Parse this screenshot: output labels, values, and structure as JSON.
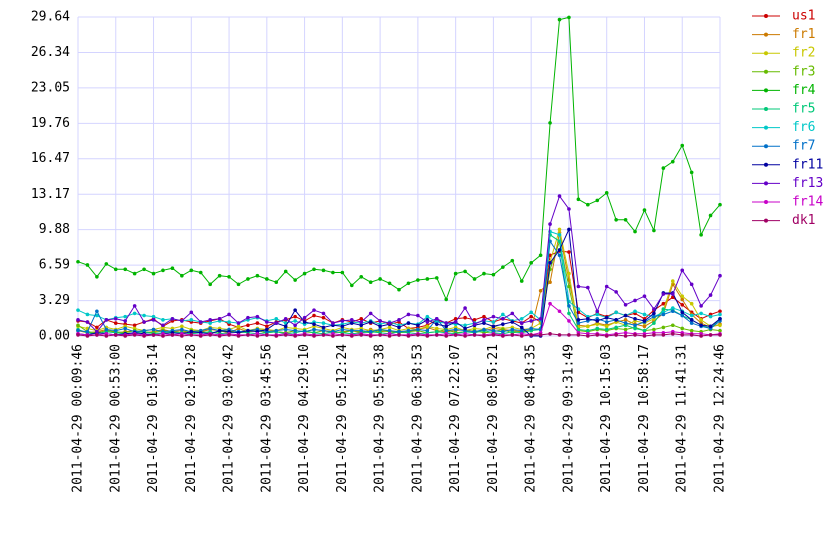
{
  "chart_data": {
    "type": "line",
    "categories": [
      "2011-04-29 00:09:46",
      null,
      null,
      null,
      "2011-04-29 00:53:00",
      null,
      null,
      null,
      "2011-04-29 01:36:14",
      null,
      null,
      null,
      "2011-04-29 02:19:28",
      null,
      null,
      null,
      "2011-04-29 03:02:42",
      null,
      null,
      null,
      "2011-04-29 03:45:56",
      null,
      null,
      null,
      "2011-04-29 04:29:10",
      null,
      null,
      null,
      "2011-04-29 05:12:24",
      null,
      null,
      null,
      "2011-04-29 05:55:38",
      null,
      null,
      null,
      "2011-04-29 06:38:53",
      null,
      null,
      null,
      "2011-04-29 07:22:07",
      null,
      null,
      null,
      "2011-04-29 08:05:21",
      null,
      null,
      null,
      "2011-04-29 08:48:35",
      null,
      null,
      null,
      "2011-04-29 09:31:49",
      null,
      null,
      null,
      "2011-04-29 10:15:03",
      null,
      null,
      null,
      "2011-04-29 10:58:17",
      null,
      null,
      null,
      "2011-04-29 11:41:31",
      null,
      null,
      null,
      "2011-04-29 12:24:46"
    ],
    "ylim": [
      0,
      29.64
    ],
    "yticks": [
      {
        "value": 0,
        "label": "0.00"
      },
      {
        "value": 3.29,
        "label": "3.29"
      },
      {
        "value": 6.59,
        "label": "6.59"
      },
      {
        "value": 9.88,
        "label": "9.88"
      },
      {
        "value": 13.17,
        "label": "13.17"
      },
      {
        "value": 16.47,
        "label": "16.47"
      },
      {
        "value": 19.76,
        "label": "19.76"
      },
      {
        "value": 23.05,
        "label": "23.05"
      },
      {
        "value": 26.34,
        "label": "26.34"
      },
      {
        "value": 29.64,
        "label": "29.64"
      }
    ],
    "grid": true,
    "legend": "right",
    "series": [
      {
        "name": "us1",
        "color": "#cc0000",
        "values": [
          1.4,
          1.3,
          0.8,
          1.5,
          1.2,
          1.1,
          1.0,
          1.3,
          1.6,
          0.9,
          1.4,
          1.5,
          1.3,
          1.2,
          1.4,
          1.6,
          1.1,
          0.8,
          1.0,
          1.2,
          0.9,
          1.3,
          1.5,
          1.8,
          1.4,
          1.9,
          1.7,
          1.2,
          1.5,
          1.3,
          1.6,
          1.2,
          1.4,
          1.1,
          1.3,
          0.7,
          0.8,
          1.0,
          1.5,
          1.2,
          1.6,
          1.7,
          1.5,
          1.8,
          1.3,
          1.6,
          1.4,
          1.2,
          1.8,
          1.3,
          7.5,
          7.9,
          7.8,
          2.2,
          1.7,
          2.1,
          1.8,
          2.2,
          1.9,
          2.1,
          1.6,
          2.4,
          3.0,
          3.6,
          2.9,
          2.2,
          1.6,
          2.0,
          2.3
        ]
      },
      {
        "name": "fr1",
        "color": "#cc7a00",
        "values": [
          0.5,
          0.3,
          0.4,
          0.6,
          0.3,
          0.4,
          0.5,
          0.3,
          0.4,
          0.6,
          0.4,
          0.5,
          0.3,
          0.4,
          0.6,
          0.5,
          0.3,
          0.7,
          0.4,
          0.5,
          0.6,
          0.4,
          0.3,
          0.5,
          0.4,
          0.6,
          0.5,
          0.3,
          0.4,
          0.5,
          0.3,
          0.6,
          0.4,
          0.5,
          0.3,
          0.4,
          0.6,
          0.8,
          0.5,
          0.4,
          0.5,
          0.6,
          0.4,
          0.5,
          0.7,
          0.6,
          0.5,
          0.4,
          0.6,
          4.2,
          5.0,
          9.6,
          5.2,
          1.0,
          0.9,
          1.2,
          1.0,
          1.3,
          1.5,
          1.1,
          0.9,
          1.4,
          2.1,
          4.8,
          3.4,
          2.0,
          1.2,
          0.8,
          1.1
        ]
      },
      {
        "name": "fr2",
        "color": "#c8c800",
        "values": [
          0.9,
          0.7,
          0.5,
          0.8,
          0.6,
          0.9,
          0.7,
          0.5,
          0.6,
          0.8,
          0.7,
          0.9,
          0.6,
          0.5,
          0.8,
          0.7,
          0.6,
          0.9,
          0.5,
          0.7,
          0.6,
          0.5,
          0.8,
          0.7,
          0.6,
          0.9,
          0.7,
          0.5,
          0.8,
          0.6,
          0.7,
          0.5,
          0.6,
          0.8,
          0.5,
          0.7,
          0.6,
          0.9,
          0.7,
          0.6,
          0.8,
          0.5,
          0.7,
          0.6,
          0.9,
          0.7,
          0.8,
          0.6,
          0.7,
          1.2,
          6.9,
          9.9,
          5.8,
          0.8,
          0.9,
          1.1,
          0.9,
          1.3,
          1.0,
          1.4,
          1.2,
          1.6,
          2.4,
          5.1,
          3.7,
          3.0,
          1.5,
          0.9,
          1.0
        ]
      },
      {
        "name": "fr3",
        "color": "#66bb00",
        "values": [
          1.0,
          0.4,
          0.3,
          0.5,
          0.4,
          0.3,
          0.5,
          0.4,
          0.3,
          0.5,
          0.4,
          0.3,
          0.5,
          0.4,
          0.3,
          0.4,
          0.5,
          0.3,
          0.4,
          0.5,
          0.3,
          0.4,
          0.3,
          0.5,
          0.4,
          0.3,
          0.5,
          0.4,
          0.3,
          0.5,
          0.4,
          0.3,
          0.5,
          0.4,
          0.3,
          0.4,
          0.5,
          0.3,
          0.4,
          0.6,
          0.3,
          0.4,
          0.5,
          0.3,
          0.4,
          0.6,
          0.3,
          0.4,
          0.5,
          0.7,
          6.2,
          8.8,
          4.6,
          0.5,
          0.4,
          0.6,
          0.5,
          0.7,
          0.6,
          0.8,
          0.5,
          0.6,
          0.8,
          1.0,
          0.7,
          0.5,
          0.4,
          0.6,
          0.5
        ]
      },
      {
        "name": "fr4",
        "color": "#00b400",
        "values": [
          6.9,
          6.6,
          5.5,
          6.7,
          6.2,
          6.2,
          5.8,
          6.2,
          5.8,
          6.1,
          6.3,
          5.6,
          6.1,
          5.9,
          4.8,
          5.6,
          5.5,
          4.8,
          5.3,
          5.6,
          5.3,
          5.0,
          6.0,
          5.2,
          5.8,
          6.2,
          6.1,
          5.9,
          5.9,
          4.7,
          5.5,
          5.0,
          5.3,
          4.9,
          4.3,
          4.9,
          5.2,
          5.3,
          5.4,
          3.4,
          5.8,
          6.0,
          5.3,
          5.8,
          5.7,
          6.4,
          7.0,
          5.1,
          6.8,
          7.5,
          19.8,
          29.4,
          29.6,
          12.7,
          12.2,
          12.6,
          13.3,
          10.8,
          10.8,
          9.7,
          11.7,
          9.8,
          15.6,
          16.2,
          17.7,
          15.2,
          9.4,
          11.2,
          12.2
        ]
      },
      {
        "name": "fr5",
        "color": "#00c878",
        "values": [
          0.6,
          0.3,
          0.2,
          0.4,
          0.3,
          0.2,
          0.3,
          0.4,
          0.2,
          0.3,
          0.4,
          0.3,
          0.2,
          0.3,
          0.4,
          0.2,
          0.3,
          0.4,
          0.3,
          0.2,
          0.3,
          0.4,
          0.2,
          0.3,
          0.5,
          0.3,
          0.2,
          0.4,
          0.3,
          0.2,
          0.3,
          0.4,
          0.3,
          0.2,
          0.4,
          0.3,
          0.2,
          0.3,
          0.4,
          0.3,
          0.2,
          0.4,
          0.3,
          0.5,
          0.3,
          0.2,
          0.4,
          0.3,
          0.5,
          0.6,
          9.4,
          8.8,
          2.1,
          0.6,
          0.5,
          0.7,
          0.6,
          0.8,
          1.0,
          0.7,
          0.5,
          1.2,
          2.5,
          2.4,
          1.9,
          1.5,
          1.0,
          0.7,
          1.6
        ]
      },
      {
        "name": "fr6",
        "color": "#00c8c8",
        "values": [
          2.4,
          2.0,
          1.9,
          1.5,
          1.7,
          1.8,
          2.1,
          1.9,
          1.8,
          1.5,
          1.6,
          1.4,
          1.5,
          1.3,
          1.2,
          1.4,
          1.3,
          1.2,
          1.5,
          1.7,
          1.4,
          1.6,
          1.2,
          1.4,
          1.1,
          1.3,
          1.2,
          1.0,
          1.1,
          1.3,
          1.2,
          1.4,
          1.1,
          1.3,
          1.0,
          1.2,
          1.1,
          1.8,
          1.3,
          1.2,
          1.1,
          1.0,
          1.2,
          1.4,
          1.3,
          2.0,
          1.4,
          1.6,
          2.2,
          1.5,
          9.7,
          9.4,
          3.2,
          2.5,
          1.8,
          2.0,
          1.7,
          2.2,
          1.9,
          2.3,
          2.0,
          1.8,
          2.2,
          2.6,
          2.3,
          1.9,
          2.1,
          1.8,
          2.0
        ]
      },
      {
        "name": "fr7",
        "color": "#0070c8",
        "values": [
          0.5,
          0.4,
          2.3,
          0.6,
          0.5,
          0.7,
          0.4,
          0.5,
          0.6,
          0.4,
          0.5,
          0.6,
          0.4,
          0.5,
          0.7,
          0.5,
          0.6,
          0.4,
          0.5,
          0.6,
          0.4,
          0.5,
          0.6,
          0.5,
          0.4,
          0.6,
          0.5,
          0.4,
          0.6,
          0.5,
          0.5,
          0.4,
          0.6,
          0.5,
          0.4,
          0.5,
          0.6,
          0.5,
          1.6,
          0.5,
          0.6,
          0.5,
          0.4,
          0.6,
          0.5,
          0.4,
          0.6,
          0.5,
          0.7,
          0.6,
          8.8,
          7.5,
          2.8,
          1.2,
          1.4,
          1.6,
          1.3,
          1.5,
          1.2,
          1.0,
          1.3,
          1.8,
          2.0,
          2.3,
          1.9,
          1.2,
          0.9,
          0.7,
          1.4
        ]
      },
      {
        "name": "fr11",
        "color": "#0000a0",
        "values": [
          0.2,
          0.1,
          0.3,
          0.2,
          0.1,
          0.2,
          0.3,
          0.2,
          0.1,
          0.2,
          0.3,
          0.2,
          0.4,
          0.3,
          0.2,
          0.5,
          0.4,
          0.3,
          0.5,
          0.4,
          0.6,
          1.2,
          0.9,
          2.4,
          1.3,
          1.1,
          0.8,
          1.0,
          0.9,
          1.2,
          1.0,
          1.3,
          0.9,
          1.1,
          0.8,
          1.2,
          1.0,
          1.5,
          1.1,
          0.9,
          1.3,
          0.7,
          1.0,
          1.2,
          0.9,
          1.1,
          1.3,
          0.8,
          0.0,
          0.0,
          6.8,
          8.0,
          9.9,
          1.5,
          1.6,
          1.4,
          1.7,
          1.5,
          1.9,
          1.6,
          1.4,
          2.1,
          4.0,
          4.0,
          2.2,
          1.5,
          1.0,
          0.9,
          1.6
        ]
      },
      {
        "name": "fr13",
        "color": "#6400c8",
        "values": [
          1.5,
          1.3,
          0.4,
          1.5,
          1.6,
          1.4,
          2.8,
          1.3,
          1.5,
          1.0,
          1.6,
          1.4,
          2.2,
          1.3,
          1.5,
          1.6,
          2.0,
          1.2,
          1.7,
          1.8,
          1.3,
          1.2,
          1.6,
          1.0,
          1.7,
          2.4,
          2.1,
          1.2,
          1.4,
          1.5,
          1.3,
          2.1,
          1.4,
          1.2,
          1.5,
          2.0,
          1.9,
          1.3,
          1.6,
          1.2,
          1.3,
          2.6,
          1.1,
          1.5,
          1.8,
          1.6,
          2.1,
          1.2,
          1.4,
          1.6,
          10.4,
          13.0,
          11.8,
          4.6,
          4.5,
          2.3,
          4.6,
          4.1,
          2.9,
          3.3,
          3.7,
          2.5,
          3.9,
          3.9,
          6.1,
          4.8,
          2.8,
          3.8,
          5.6
        ]
      },
      {
        "name": "fr14",
        "color": "#c800c8",
        "values": [
          0.2,
          0.1,
          0.1,
          0.2,
          0.1,
          0.1,
          0.2,
          0.1,
          0.1,
          0.2,
          0.1,
          0.2,
          0.1,
          0.1,
          0.2,
          0.1,
          0.2,
          0.1,
          0.1,
          0.2,
          0.1,
          0.1,
          0.2,
          0.1,
          0.2,
          0.1,
          0.1,
          0.2,
          0.1,
          0.1,
          0.2,
          0.1,
          0.1,
          0.2,
          0.1,
          0.1,
          0.2,
          0.1,
          0.1,
          0.2,
          0.1,
          0.2,
          0.1,
          0.1,
          0.2,
          0.1,
          0.1,
          0.2,
          0.1,
          0.3,
          3.0,
          2.3,
          1.4,
          0.3,
          0.2,
          0.2,
          0.1,
          0.2,
          0.3,
          0.2,
          0.2,
          0.3,
          0.3,
          0.4,
          0.3,
          0.2,
          0.2,
          0.1,
          0.2
        ]
      },
      {
        "name": "dk1",
        "color": "#a00064",
        "values": [
          0.1,
          0.0,
          0.1,
          0.0,
          0.1,
          0.0,
          0.1,
          0.0,
          0.1,
          0.0,
          0.1,
          0.0,
          0.1,
          0.0,
          0.1,
          0.0,
          0.1,
          0.0,
          0.1,
          0.0,
          0.1,
          0.0,
          0.1,
          0.0,
          0.1,
          0.0,
          0.1,
          0.0,
          0.1,
          0.0,
          0.1,
          0.0,
          0.1,
          0.0,
          0.1,
          0.0,
          0.1,
          0.0,
          0.1,
          0.0,
          0.1,
          0.0,
          0.1,
          0.0,
          0.1,
          0.0,
          0.1,
          0.0,
          0.1,
          0.1,
          0.2,
          0.1,
          0.1,
          0.1,
          0.0,
          0.1,
          0.0,
          0.1,
          0.0,
          0.1,
          0.0,
          0.1,
          0.1,
          0.2,
          0.1,
          0.1,
          0.0,
          0.1,
          0.1
        ]
      }
    ]
  }
}
